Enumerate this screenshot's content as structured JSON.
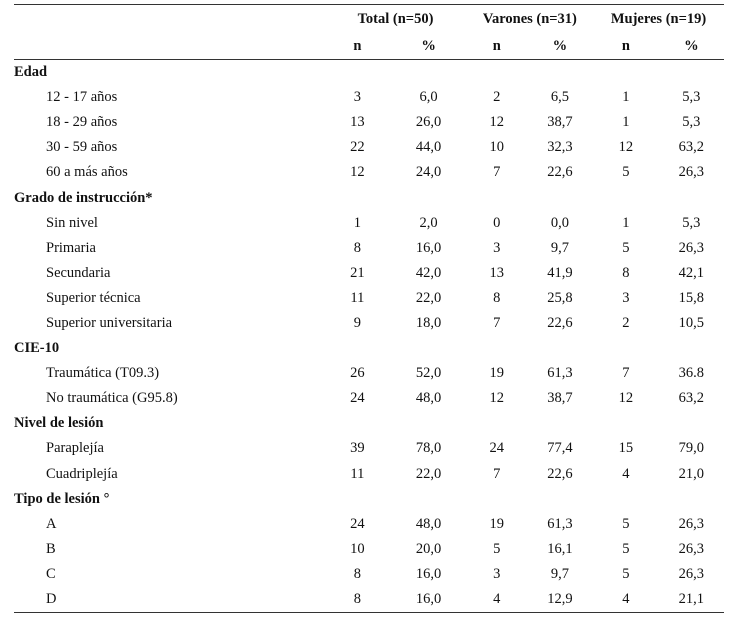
{
  "header": {
    "groups": [
      "Total (n=50)",
      "Varones (n=31)",
      "Mujeres (n=19)"
    ],
    "sub": [
      "n",
      "%",
      "n",
      "%",
      "n",
      "%"
    ]
  },
  "rows": [
    {
      "type": "category",
      "label": "Edad"
    },
    {
      "type": "item",
      "label": "12 - 17 años",
      "values": [
        "3",
        "6,0",
        "2",
        "6,5",
        "1",
        "5,3"
      ]
    },
    {
      "type": "item",
      "label": "18 - 29 años",
      "values": [
        "13",
        "26,0",
        "12",
        "38,7",
        "1",
        "5,3"
      ]
    },
    {
      "type": "item",
      "label": "30 - 59 años",
      "values": [
        "22",
        "44,0",
        "10",
        "32,3",
        "12",
        "63,2"
      ]
    },
    {
      "type": "item",
      "label": "60 a más años",
      "values": [
        "12",
        "24,0",
        "7",
        "22,6",
        "5",
        "26,3"
      ]
    },
    {
      "type": "category",
      "label": "Grado de instrucción*"
    },
    {
      "type": "item",
      "label": "Sin nivel",
      "values": [
        "1",
        "2,0",
        "0",
        "0,0",
        "1",
        "5,3"
      ]
    },
    {
      "type": "item",
      "label": "Primaria",
      "values": [
        "8",
        "16,0",
        "3",
        "9,7",
        "5",
        "26,3"
      ]
    },
    {
      "type": "item",
      "label": "Secundaria",
      "values": [
        "21",
        "42,0",
        "13",
        "41,9",
        "8",
        "42,1"
      ]
    },
    {
      "type": "item",
      "label": "Superior técnica",
      "values": [
        "11",
        "22,0",
        "8",
        "25,8",
        "3",
        "15,8"
      ]
    },
    {
      "type": "item",
      "label": "Superior universitaria",
      "values": [
        "9",
        "18,0",
        "7",
        "22,6",
        "2",
        "10,5"
      ]
    },
    {
      "type": "category",
      "label": "CIE-10"
    },
    {
      "type": "item",
      "label": "Traumática (T09.3)",
      "values": [
        "26",
        "52,0",
        "19",
        "61,3",
        "7",
        "36.8"
      ]
    },
    {
      "type": "item",
      "label": "No traumática (G95.8)",
      "values": [
        "24",
        "48,0",
        "12",
        "38,7",
        "12",
        "63,2"
      ]
    },
    {
      "type": "category",
      "label": "Nivel de lesión"
    },
    {
      "type": "item",
      "label": "Paraplejía",
      "values": [
        "39",
        "78,0",
        "24",
        "77,4",
        "15",
        "79,0"
      ]
    },
    {
      "type": "item",
      "label": "Cuadriplejía",
      "values": [
        "11",
        "22,0",
        "7",
        "22,6",
        "4",
        "21,0"
      ]
    },
    {
      "type": "category",
      "label": "Tipo de lesión °"
    },
    {
      "type": "item",
      "label": "A",
      "values": [
        "24",
        "48,0",
        "19",
        "61,3",
        "5",
        "26,3"
      ]
    },
    {
      "type": "item",
      "label": "B",
      "values": [
        "10",
        "20,0",
        "5",
        "16,1",
        "5",
        "26,3"
      ]
    },
    {
      "type": "item",
      "label": "C",
      "values": [
        "8",
        "16,0",
        "3",
        "9,7",
        "5",
        "26,3"
      ]
    },
    {
      "type": "item",
      "label": "D",
      "values": [
        "8",
        "16,0",
        "4",
        "12,9",
        "4",
        "21,1"
      ]
    }
  ]
}
